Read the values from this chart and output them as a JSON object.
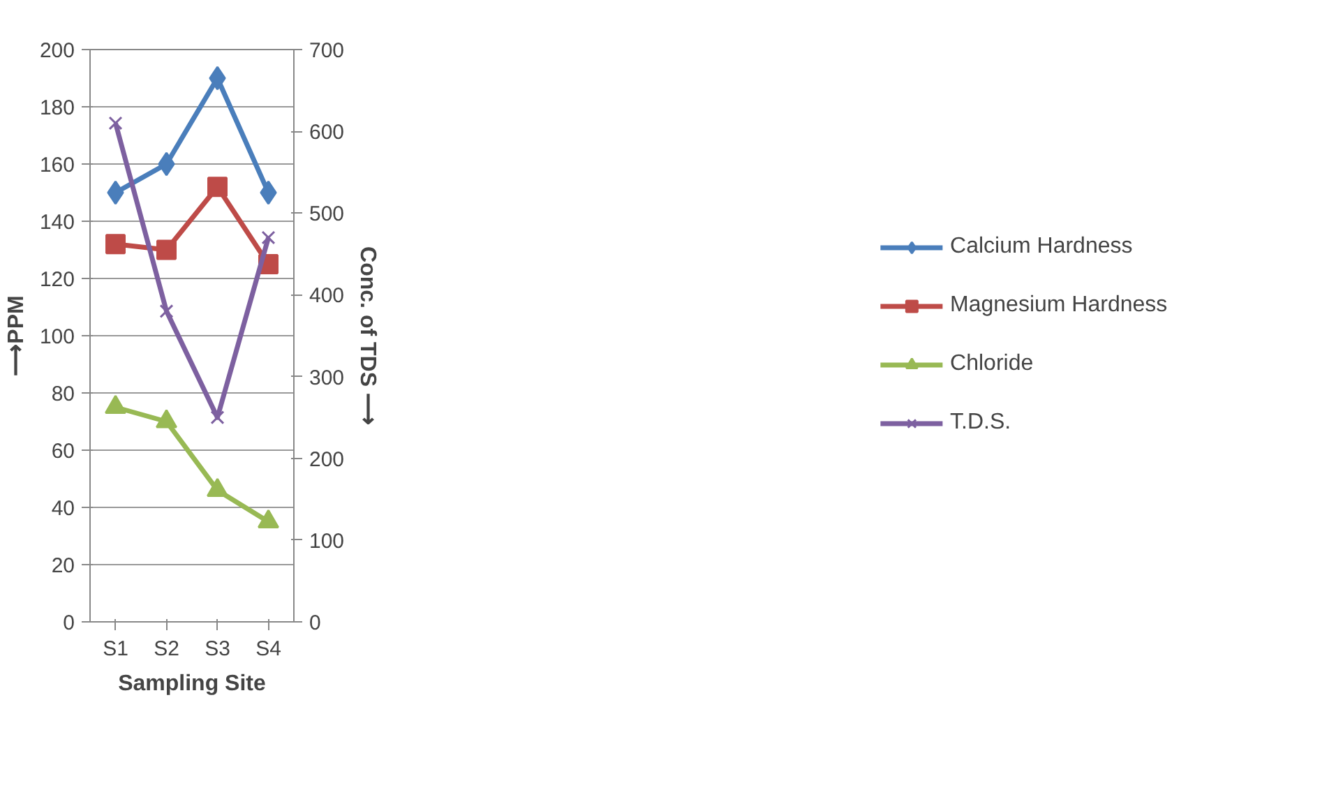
{
  "chart_data": {
    "type": "line",
    "xlabel": "Sampling Site",
    "ylabel": "⟶PPM",
    "y2label": "Conc. of TDS ⟶",
    "categories": [
      "S1",
      "S2",
      "S3",
      "S4"
    ],
    "ylim": [
      0,
      200
    ],
    "yticks": [
      0,
      20,
      40,
      60,
      80,
      100,
      120,
      140,
      160,
      180,
      200
    ],
    "y2lim": [
      0,
      700
    ],
    "y2ticks": [
      0,
      100,
      200,
      300,
      400,
      500,
      600,
      700
    ],
    "grid": "y",
    "legend": "right",
    "series": [
      {
        "name": "Calcium Hardness",
        "color": "#4a7ebb",
        "marker": "diamond",
        "values": [
          150,
          160,
          190,
          150
        ]
      },
      {
        "name": "Magnesium Hardness",
        "color": "#be4b48",
        "marker": "square",
        "values": [
          132,
          130,
          152,
          125
        ]
      },
      {
        "name": "Chloride",
        "color": "#98b954",
        "marker": "triangle",
        "values": [
          75,
          70,
          46,
          35
        ]
      },
      {
        "name": "T.D.S.",
        "color": "#7d60a0",
        "marker": "x",
        "axis": "y2",
        "values": [
          610,
          380,
          250,
          470
        ]
      }
    ]
  }
}
